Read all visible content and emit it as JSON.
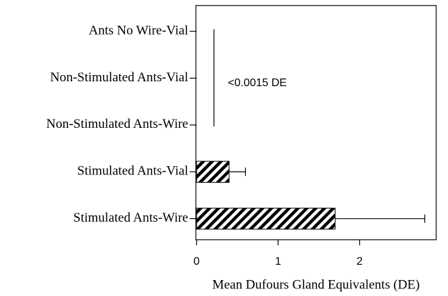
{
  "chart_data": {
    "type": "hbar",
    "categories": [
      "Ants No Wire-Vial",
      "Non-Stimulated Ants-Vial",
      "Non-Stimulated Ants-Wire",
      "Stimulated Ants-Vial",
      "Stimulated Ants-Wire"
    ],
    "values": [
      0,
      0,
      0,
      0.4,
      1.7
    ],
    "errors": [
      null,
      null,
      null,
      0.2,
      1.1
    ],
    "color": "#000000",
    "hatch": "diagonal",
    "xlim": [
      0,
      2.94
    ],
    "xticks": [
      0,
      1,
      2
    ],
    "xlabel": "Mean Dufours Gland Equivalents (DE)",
    "annotation": "<0.0015 DE"
  }
}
